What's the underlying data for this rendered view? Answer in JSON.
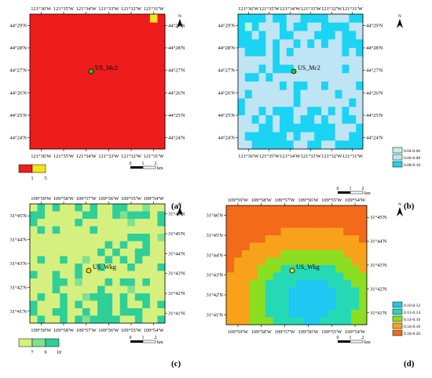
{
  "panels": [
    {
      "label": "(a)",
      "site": "US_Mc2",
      "top_ticks": [
        "121°36'W",
        "121°35'W",
        "121°34'W",
        "121°33'W",
        "121°32'W",
        "121°31'W"
      ],
      "bottom_ticks": [
        "121°36'W",
        "121°35'W",
        "121°34'W",
        "121°33'W",
        "121°32'W",
        "121°31'W"
      ],
      "left_ticks": [
        "44°29'N",
        "44°28'N",
        "44°27'N",
        "44°26'N",
        "44°25'N",
        "44°24'N"
      ],
      "right_ticks": [
        "44°29'N",
        "44°28'N",
        "44°27'N",
        "44°26'N",
        "44°25'N",
        "44°24'N"
      ],
      "legend": [
        {
          "label": "1",
          "color": "#ee1c1c"
        },
        {
          "label": "5",
          "color": "#f6e21d"
        }
      ],
      "scale": {
        "labels": [
          "0",
          "1",
          "2"
        ],
        "unit": "km"
      },
      "north": "N"
    },
    {
      "label": "(b)",
      "site": "US_Mc2",
      "top_ticks": [
        "121°36'W",
        "121°35'W",
        "121°34'W",
        "121°33'W",
        "121°32'W",
        "121°31'W"
      ],
      "bottom_ticks": [
        "121°36'W",
        "121°35'W",
        "121°34'W",
        "121°33'W",
        "121°32'W",
        "121°31'W"
      ],
      "left_ticks": [
        "44°29'N",
        "44°28'N",
        "44°27'N",
        "44°26'N",
        "44°25'N",
        "44°24'N"
      ],
      "right_ticks": [
        "44°29'N",
        "44°28'N",
        "44°27'N",
        "44°26'N",
        "44°25'N",
        "44°24'N"
      ],
      "legend": [
        {
          "label": "0.04-0.06",
          "color": "#b9f4e2"
        },
        {
          "label": "0.06-0.08",
          "color": "#bfe4f4"
        },
        {
          "label": "0.08-0.10",
          "color": "#1bd3f3"
        }
      ],
      "scale": {
        "labels": [
          "0",
          "1",
          "2"
        ],
        "unit": "km"
      },
      "north": "N"
    },
    {
      "label": "(c)",
      "site": "US_Wkg",
      "top_ticks": [
        "109°59'W",
        "109°58'W",
        "109°57'W",
        "109°56'W",
        "109°55'W",
        "109°54'W"
      ],
      "bottom_ticks": [
        "109°59'W",
        "109°58'W",
        "109°57'W",
        "109°56'W",
        "109°55'W",
        "109°54'W"
      ],
      "left_ticks": [
        "31°45'N",
        "31°44'N",
        "31°43'N",
        "31°42'N",
        "31°41'N"
      ],
      "right_ticks": [
        "31°46'N",
        "31°45'N",
        "31°44'N",
        "31°43'N",
        "31°42'N",
        "31°41'N"
      ],
      "legend": [
        {
          "label": "7",
          "color": "#d6f07f"
        },
        {
          "label": "9",
          "color": "#80e092"
        },
        {
          "label": "10",
          "color": "#2fcf98"
        }
      ],
      "scale": {
        "labels": [
          "0",
          "1",
          "2"
        ],
        "unit": "km"
      },
      "north": "N"
    },
    {
      "label": "(d)",
      "site": "US_Wkg",
      "top_ticks": [
        "109°59'W",
        "109°58'W",
        "109°57'W",
        "109°56'W",
        "109°55'W",
        "109°54'W"
      ],
      "bottom_ticks": [
        "109°59'W",
        "109°58'W",
        "109°57'W",
        "109°56'W",
        "109°55'W",
        "109°54'W"
      ],
      "left_ticks": [
        "31°46'N",
        "31°45'N",
        "31°44'N",
        "31°43'N",
        "31°42'N",
        "31°41'N"
      ],
      "right_ticks": [
        "31°45'N",
        "31°44'N",
        "31°43'N",
        "31°42'N",
        "31°41'N"
      ],
      "legend": [
        {
          "label": "0.10-0.12",
          "color": "#1ec8f2"
        },
        {
          "label": "0.12-0.14",
          "color": "#25d9b4"
        },
        {
          "label": "0.14-0.16",
          "color": "#8cde20"
        },
        {
          "label": "0.16-0.18",
          "color": "#f7a21a"
        },
        {
          "label": "0.18-0.20",
          "color": "#f26a1a"
        }
      ],
      "scale": {
        "labels": [
          "0",
          "1",
          "2"
        ],
        "unit": "km"
      },
      "north": "N"
    }
  ]
}
